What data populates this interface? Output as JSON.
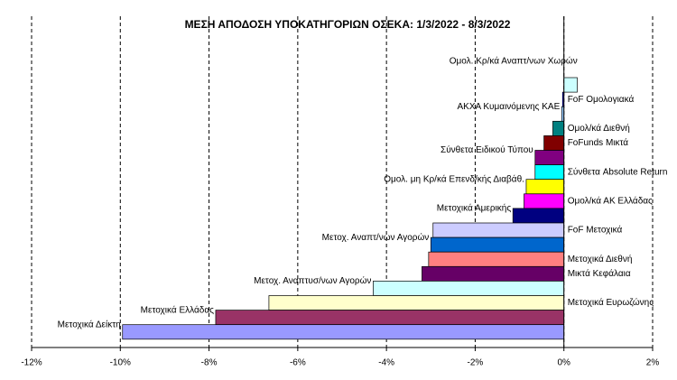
{
  "chart_data": {
    "type": "barh",
    "title": "ΜΕΣΗ ΑΠΟΔΟΣΗ ΥΠΟΚΑΤΗΓΟΡΙΩΝ  ΟΣΕΚΑ:  1/3/2022 - 8/3/2022",
    "categories": [
      "Ομολ. Κρ/κά Αναπτ/νων Χωρών",
      "FoF Ομολογιακά",
      "ΑΚΧΑ Κυμαινόμενης ΚΑΕ",
      "Ομολ/κά Διεθνή",
      "FoFunds Μικτά",
      "Σύνθετα Ειδικού Τύπου",
      "Σύνθετα Absolute Return",
      "Ομολ. μη Κρ/κά Επενδ/κής Διαβάθ.",
      "Ομολ/κά ΑΚ Ελλάδας",
      "Μετοχικά Αμερικής",
      "FoF Μετοχικά",
      "Μετοχ. Αναπτ/νων Αγορών",
      "Μετοχικά Διεθνή",
      "Μικτά Κεφάλαια",
      "Μετοχ. Αναπτυσ/νων Αγορών",
      "Μετοχικά Ευρωζώνης",
      "Μετοχικά Ελλάδας",
      "Μετοχικά Δείκτη"
    ],
    "values": [
      0.3,
      -0.03,
      -0.05,
      -0.25,
      -0.45,
      -0.65,
      -0.65,
      -0.85,
      -0.9,
      -1.15,
      -2.95,
      -3.0,
      -3.05,
      -3.2,
      -4.3,
      -6.65,
      -7.85,
      -9.95
    ],
    "colors": [
      "#ccffff",
      "#0000ff",
      "#99ccff",
      "#008080",
      "#800000",
      "#800080",
      "#00ffff",
      "#ffff00",
      "#ff00ff",
      "#000080",
      "#ccccff",
      "#0066cc",
      "#ff8080",
      "#660066",
      "#ccffff",
      "#ffffcc",
      "#993366",
      "#9999ff"
    ],
    "xlim": [
      -12,
      2
    ],
    "xticks": [
      {
        "value": -12,
        "label": "-12%"
      },
      {
        "value": -10,
        "label": "-10%"
      },
      {
        "value": -8,
        "label": "-8%"
      },
      {
        "value": -6,
        "label": "-6%"
      },
      {
        "value": -4,
        "label": "-4%"
      },
      {
        "value": -2,
        "label": "-2%"
      },
      {
        "value": 0,
        "label": "0%"
      },
      {
        "value": 2,
        "label": "2%"
      }
    ],
    "grid": true
  }
}
